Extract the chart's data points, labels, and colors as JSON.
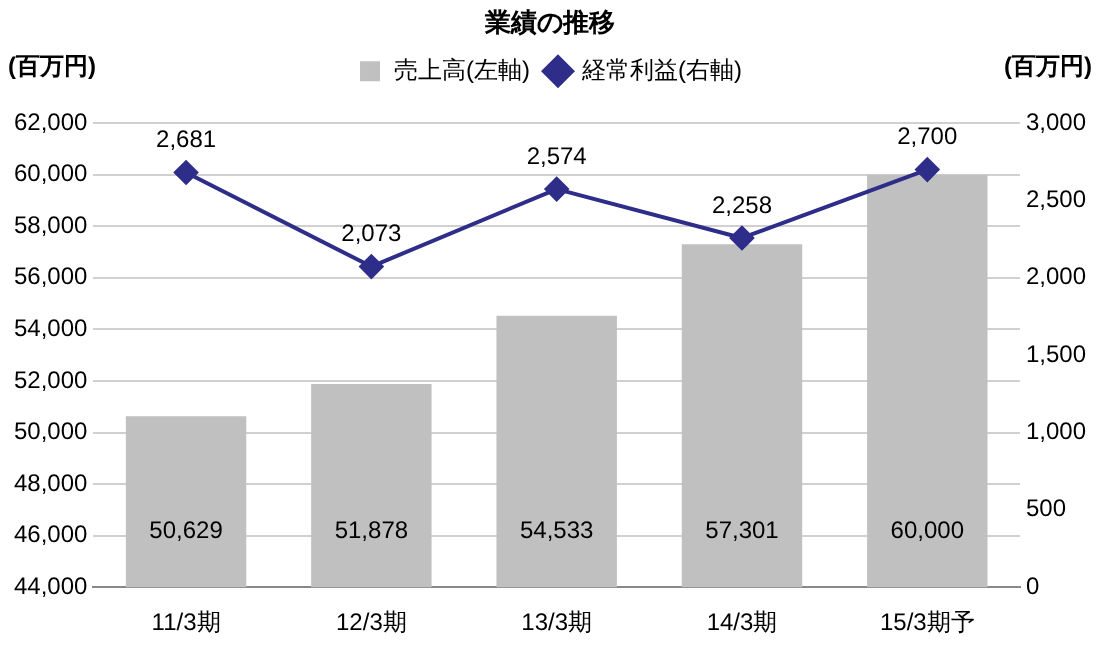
{
  "chart_data": {
    "type": "bar",
    "title": "業績の推移",
    "ylabel": "(百万円)",
    "y2label": "(百万円)",
    "categories": [
      "11/3期",
      "12/3期",
      "13/3期",
      "14/3期",
      "15/3期予"
    ],
    "series": [
      {
        "name": "売上高(左軸)",
        "color": "#c0c0c0",
        "values": [
          50629,
          51878,
          54533,
          57301,
          60000
        ],
        "value_labels": [
          "50,629",
          "51,878",
          "54,533",
          "57,301",
          "60,000"
        ]
      },
      {
        "name": "経常利益(右軸)",
        "type": "line",
        "axis": "y2",
        "color": "#2e2e8a",
        "marker": "diamond",
        "values": [
          2681,
          2073,
          2574,
          2258,
          2700
        ],
        "value_labels": [
          "2,681",
          "2,073",
          "2,574",
          "2,258",
          "2,700"
        ]
      }
    ],
    "ylim": [
      44000,
      62000
    ],
    "yticks": [
      {
        "value": 44000,
        "label": "44,000"
      },
      {
        "value": 46000,
        "label": "46,000"
      },
      {
        "value": 48000,
        "label": "48,000"
      },
      {
        "value": 50000,
        "label": "50,000"
      },
      {
        "value": 52000,
        "label": "52,000"
      },
      {
        "value": 54000,
        "label": "54,000"
      },
      {
        "value": 56000,
        "label": "56,000"
      },
      {
        "value": 58000,
        "label": "58,000"
      },
      {
        "value": 60000,
        "label": "60,000"
      },
      {
        "value": 62000,
        "label": "62,000"
      }
    ],
    "y2lim": [
      0,
      3000
    ],
    "y2ticks": [
      0,
      500,
      {
        "value": 1000,
        "label": "1,000"
      },
      {
        "value": 1500,
        "label": "1,500"
      },
      {
        "value": 2000,
        "label": "2,000"
      },
      {
        "value": 2500,
        "label": "2,500"
      },
      {
        "value": 3000,
        "label": "3,000"
      }
    ],
    "grid": "y",
    "legend": "top"
  }
}
